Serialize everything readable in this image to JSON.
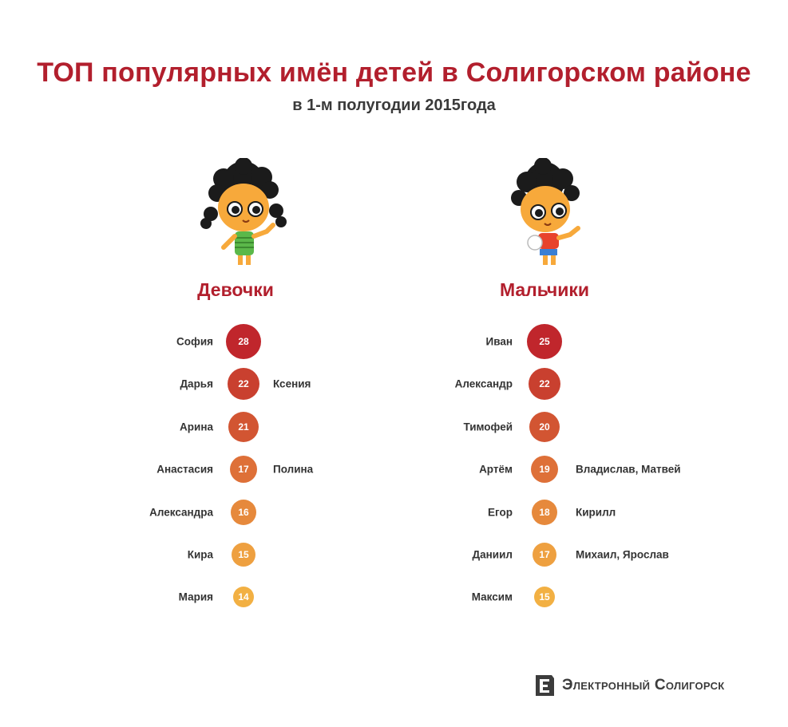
{
  "header": {
    "title": "ТОП популярных имён детей в Солигорском районе",
    "subtitle": "в 1-м полугодии 2015года"
  },
  "girls": {
    "title": "Девочки",
    "avatar_icon": "girl-cartoon-icon",
    "rows": [
      {
        "name": "София",
        "count": "28",
        "extra": "",
        "color": "#c0262c"
      },
      {
        "name": "Дарья",
        "count": "22",
        "extra": "Ксения",
        "color": "#c9402f"
      },
      {
        "name": "Арина",
        "count": "21",
        "extra": "",
        "color": "#d25532"
      },
      {
        "name": "Анастасия",
        "count": "17",
        "extra": "Полина",
        "color": "#de7038"
      },
      {
        "name": "Александра",
        "count": "16",
        "extra": "",
        "color": "#e6893c"
      },
      {
        "name": "Кира",
        "count": "15",
        "extra": "",
        "color": "#eea040"
      },
      {
        "name": "Мария",
        "count": "14",
        "extra": "",
        "color": "#f2b043"
      }
    ]
  },
  "boys": {
    "title": "Мальчики",
    "avatar_icon": "boy-cartoon-icon",
    "rows": [
      {
        "name": "Иван",
        "count": "25",
        "extra": "",
        "color": "#c0262c"
      },
      {
        "name": "Александр",
        "count": "22",
        "extra": "",
        "color": "#c9402f"
      },
      {
        "name": "Тимофей",
        "count": "20",
        "extra": "",
        "color": "#d25532"
      },
      {
        "name": "Артём",
        "count": "19",
        "extra": "Владислав, Матвей",
        "color": "#de7038"
      },
      {
        "name": "Егор",
        "count": "18",
        "extra": "Кирилл",
        "color": "#e6893c"
      },
      {
        "name": "Даниил",
        "count": "17",
        "extra": "Михаил, Ярослав",
        "color": "#eea040"
      },
      {
        "name": "Максим",
        "count": "15",
        "extra": "",
        "color": "#f2b043"
      }
    ]
  },
  "logo": {
    "text": "Электронный Солигорск",
    "icon": "e-logo-icon"
  }
}
